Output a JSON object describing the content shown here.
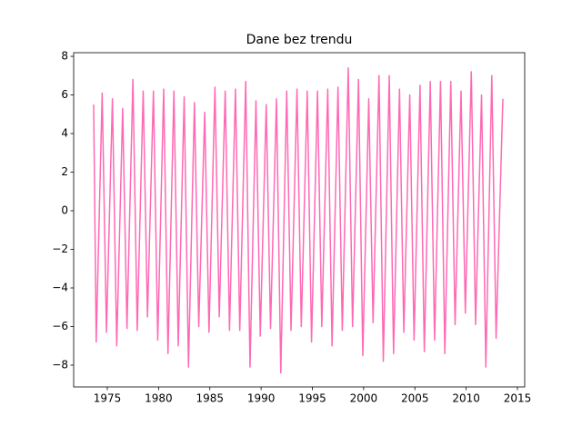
{
  "chart_data": {
    "type": "line",
    "title": "Dane bez trendu",
    "x": [
      1973.67,
      1973.92,
      1974.5,
      1974.92,
      1975.5,
      1975.92,
      1976.5,
      1976.92,
      1977.5,
      1977.92,
      1978.5,
      1978.92,
      1979.5,
      1979.92,
      1980.5,
      1980.92,
      1981.5,
      1981.92,
      1982.5,
      1982.92,
      1983.5,
      1983.92,
      1984.5,
      1984.92,
      1985.5,
      1985.92,
      1986.5,
      1986.92,
      1987.5,
      1987.92,
      1988.5,
      1988.92,
      1989.5,
      1989.92,
      1990.5,
      1990.92,
      1991.5,
      1991.92,
      1992.5,
      1992.92,
      1993.5,
      1993.92,
      1994.5,
      1994.92,
      1995.5,
      1995.92,
      1996.5,
      1996.92,
      1997.5,
      1997.92,
      1998.5,
      1998.92,
      1999.5,
      1999.92,
      2000.5,
      2000.92,
      2001.5,
      2001.92,
      2002.5,
      2002.92,
      2003.5,
      2003.92,
      2004.5,
      2004.92,
      2005.5,
      2005.92,
      2006.5,
      2006.92,
      2007.5,
      2007.92,
      2008.5,
      2008.92,
      2009.5,
      2009.92,
      2010.5,
      2010.92,
      2011.5,
      2011.92,
      2012.5,
      2012.92,
      2013.58
    ],
    "series": [
      {
        "color": "#ff69b4",
        "values": [
          5.5,
          -6.8,
          6.1,
          -6.3,
          5.8,
          -7.0,
          5.3,
          -6.1,
          6.8,
          -6.2,
          6.2,
          -5.5,
          6.2,
          -6.7,
          6.3,
          -7.4,
          6.2,
          -7.0,
          5.9,
          -8.1,
          5.6,
          -6.0,
          5.1,
          -6.3,
          6.4,
          -5.5,
          6.2,
          -6.2,
          6.3,
          -6.2,
          6.7,
          -8.1,
          5.7,
          -6.5,
          5.5,
          -6.1,
          5.8,
          -8.4,
          6.2,
          -6.2,
          6.3,
          -6.0,
          6.2,
          -6.8,
          6.2,
          -6.0,
          6.3,
          -7.0,
          6.4,
          -6.2,
          7.4,
          -6.0,
          6.8,
          -7.5,
          5.8,
          -5.8,
          7.0,
          -7.8,
          7.0,
          -7.4,
          6.3,
          -6.3,
          6.0,
          -6.7,
          6.5,
          -7.3,
          6.7,
          -6.7,
          6.7,
          -7.4,
          6.7,
          -5.9,
          6.2,
          -5.3,
          7.2,
          -5.9,
          6.0,
          -8.1,
          7.0,
          -6.6,
          5.8
        ]
      }
    ],
    "xlim": [
      1971.72,
      2015.71
    ],
    "ylim": [
      -9.13,
      8.19
    ],
    "xticks": [
      1975,
      1980,
      1985,
      1990,
      1995,
      2000,
      2005,
      2010,
      2015
    ],
    "yticks": [
      {
        "value": -8,
        "label": "−8"
      },
      {
        "value": -6,
        "label": "−6"
      },
      {
        "value": -4,
        "label": "−4"
      },
      {
        "value": -2,
        "label": "−2"
      },
      0,
      2,
      4,
      6,
      8
    ]
  }
}
